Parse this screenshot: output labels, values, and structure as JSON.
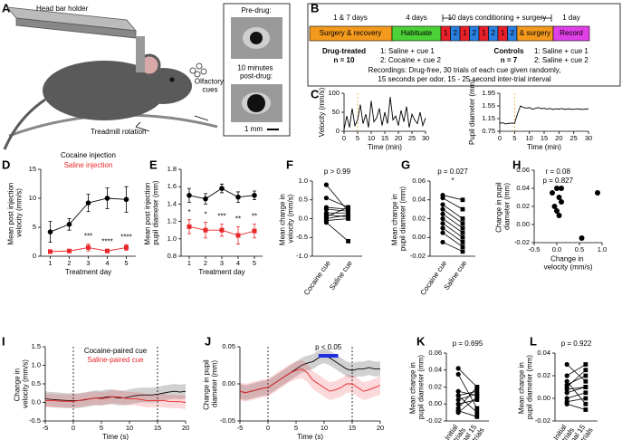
{
  "panel_labels": [
    "A",
    "B",
    "C",
    "D",
    "E",
    "F",
    "G",
    "H",
    "I",
    "J",
    "K",
    "L"
  ],
  "setup": {
    "head_bar": "Head bar holder",
    "cues": "Olfactory cues",
    "treadmill": "Treadmill rotation",
    "pre": "Pre-drug:",
    "post": "10 minutes post-drug:",
    "scale": "1 mm"
  },
  "experiment": {
    "durations": [
      "1 & 7 days",
      "4 days",
      "10 days conditioning + surgery",
      "1 day"
    ],
    "stages": [
      "Surgery & recovery",
      "Habituate"
    ],
    "sessions": [
      "1",
      "2",
      "1",
      "2",
      "1",
      "2",
      "1",
      "2"
    ],
    "surgery_note": "& surgery",
    "final_stage": "Record",
    "drug_group": {
      "name": "Drug-treated",
      "n": "n = 10",
      "cue1": "1: Saline + cue 1",
      "cue2": "2: Cocaine + cue 2"
    },
    "control_group": {
      "name": "Controls",
      "n": "n = 7",
      "cue1": "1: Saline + cue 1",
      "cue2": "2: Saline + cue 2"
    },
    "recordings": [
      "Recordings: Drug-free, 30 trials of each cue given randomly,",
      "15 seconds per odor, 15 - 25 second inter-trial interval"
    ]
  },
  "chart_data": [
    {
      "type": "line",
      "ylabel": "Velocity (mm/s)",
      "xlabel": "Time (min)",
      "xlim": [
        0,
        30
      ],
      "xticks": [
        0,
        5,
        10,
        15,
        20,
        25,
        30
      ],
      "ylim": [
        0,
        100
      ],
      "yticks": [
        0,
        50,
        100
      ],
      "vlines": [
        5
      ],
      "vline_color": "#f0a030",
      "x": [
        0,
        1,
        2,
        3,
        4,
        5,
        6,
        7,
        8,
        9,
        10,
        11,
        12,
        13,
        14,
        15,
        16,
        17,
        18,
        19,
        20,
        21,
        22,
        23,
        24,
        25,
        26,
        27,
        28,
        29,
        30
      ],
      "series": [
        {
          "color": "#000000",
          "values": [
            5,
            40,
            10,
            60,
            15,
            30,
            70,
            20,
            45,
            10,
            80,
            25,
            35,
            60,
            15,
            50,
            20,
            90,
            30,
            40,
            15,
            55,
            25,
            65,
            10,
            45,
            30,
            20,
            50,
            15,
            35
          ]
        }
      ]
    },
    {
      "type": "line",
      "ylabel": "Pupil diameter (mm)",
      "xlabel": "Time (min)",
      "xlim": [
        0,
        30
      ],
      "xticks": [
        0,
        5,
        10,
        15,
        20,
        25,
        30
      ],
      "ylim": [
        0.75,
        1.95
      ],
      "yticks": [
        0.75,
        1.15,
        1.55,
        1.95
      ],
      "vlines": [
        5
      ],
      "vline_color": "#f0a030",
      "x": [
        0,
        1,
        2,
        3,
        4,
        5,
        6,
        7,
        8,
        9,
        10,
        11,
        12,
        13,
        14,
        15,
        16,
        17,
        18,
        19,
        20,
        21,
        22,
        23,
        24,
        25,
        26,
        27,
        28,
        29,
        30
      ],
      "series": [
        {
          "color": "#000000",
          "values": [
            1.0,
            1.02,
            0.98,
            1.0,
            1.01,
            1.0,
            1.3,
            1.55,
            1.5,
            1.48,
            1.5,
            1.45,
            1.47,
            1.5,
            1.46,
            1.48,
            1.45,
            1.47,
            1.44,
            1.46,
            1.45,
            1.47,
            1.44,
            1.46,
            1.45,
            1.44,
            1.46,
            1.45,
            1.44,
            1.45,
            1.46
          ]
        }
      ]
    },
    {
      "type": "line",
      "ylabel": "Mean post injection velocity (mm/s)",
      "xlabel": "Treatment day",
      "xlim": [
        0.5,
        5.5
      ],
      "xticks": [
        1,
        2,
        3,
        4,
        5
      ],
      "ylim": [
        0,
        15
      ],
      "yticks": [
        0,
        5,
        10,
        15
      ],
      "markers": true,
      "legend": "above",
      "x": [
        1,
        2,
        3,
        4,
        5
      ],
      "series": [
        {
          "name": "Cocaine injection",
          "color": "#000000",
          "marker": "circle",
          "values": [
            4.2,
            5.5,
            9.2,
            10,
            9.8
          ],
          "errors": [
            1.8,
            1,
            1.5,
            1.8,
            2.2
          ]
        },
        {
          "name": "Saline injection",
          "color": "#e8282b",
          "marker": "square",
          "values": [
            0.8,
            0.9,
            1.5,
            0.9,
            1.5
          ],
          "errors": [
            0.2,
            0.2,
            0.6,
            0.3,
            0.5
          ]
        }
      ],
      "stars": [
        {
          "text": "***",
          "x": 3
        },
        {
          "text": "****",
          "x": 4
        },
        {
          "text": "****",
          "x": 5
        }
      ]
    },
    {
      "type": "line",
      "ylabel": "Mean post injection pupil diameter (mm)",
      "xlabel": "Treatment day",
      "xlim": [
        0.5,
        5.5
      ],
      "xticks": [
        1,
        2,
        3,
        4,
        5
      ],
      "ylim": [
        0.8,
        1.8
      ],
      "yticks": [
        0.8,
        {
          "value": 1,
          "label": "1.0"
        },
        1.2,
        1.4,
        1.6,
        1.8
      ],
      "markers": true,
      "x": [
        1,
        2,
        3,
        4,
        5
      ],
      "series": [
        {
          "color": "#000000",
          "marker": "circle",
          "values": [
            1.5,
            1.46,
            1.58,
            1.48,
            1.5
          ],
          "errors": [
            0.08,
            0.06,
            0.05,
            0.06,
            0.05
          ]
        },
        {
          "color": "#e8282b",
          "marker": "square",
          "values": [
            1.14,
            1.1,
            1.1,
            1.04,
            1.09
          ],
          "errors": [
            0.08,
            0.09,
            0.07,
            0.1,
            0.08
          ]
        }
      ],
      "stars": [
        {
          "text": "*",
          "x": 1
        },
        {
          "text": "*",
          "x": 2
        },
        {
          "text": "***",
          "x": 3
        },
        {
          "text": "**",
          "x": 4
        },
        {
          "text": "**",
          "x": 5
        }
      ]
    },
    {
      "type": "paired",
      "ylabel": "Mean change in velocity (mm/s)",
      "categories": [
        "Cocaine cue",
        "Saline cue"
      ],
      "ylim": [
        -1,
        1
      ],
      "yticks": [
        {
          "value": -1,
          "label": "-1.0"
        },
        -0.5,
        {
          "value": 0,
          "label": "0.0"
        },
        0.5,
        {
          "value": 1,
          "label": "1.0"
        }
      ],
      "annotations": [
        "p > 0.99"
      ],
      "values": [
        [
          0.9,
          0.55,
          0.3,
          0.25,
          0.15,
          0.1,
          0.05,
          0,
          -0.05,
          -0.1
        ],
        [
          0.2,
          0.3,
          0.25,
          0.2,
          0.15,
          0.05,
          0.3,
          0.1,
          0,
          -0.6
        ]
      ]
    },
    {
      "type": "paired",
      "ylabel": "Mean change in pupil diameter (mm)",
      "categories": [
        "Cocaine cue",
        "Saline cue"
      ],
      "ylim": [
        -0.02,
        0.06
      ],
      "yticks": [
        -0.02,
        {
          "value": 0,
          "label": "0.00"
        },
        0.02,
        0.04,
        0.06
      ],
      "annotations": [
        "p = 0.027",
        "*"
      ],
      "values": [
        [
          0.045,
          0.042,
          0.035,
          0.03,
          0.025,
          0.02,
          0.015,
          0.01,
          0.005,
          -0.005
        ],
        [
          0.04,
          0.03,
          0.02,
          0.015,
          0.01,
          0.005,
          0,
          -0.005,
          -0.01,
          -0.015
        ]
      ]
    },
    {
      "type": "scatter",
      "ylabel": "Change in pupil diameter (mm)",
      "xlabel": "Change in velocity (mm/s)",
      "xlim": [
        -0.5,
        1
      ],
      "xticks": [
        -0.5,
        {
          "value": 0,
          "label": "0.0"
        },
        0.5,
        {
          "value": 1,
          "label": "1.0"
        }
      ],
      "ylim": [
        -0.02,
        0.06
      ],
      "yticks": [
        -0.02,
        {
          "value": 0,
          "label": "0.00"
        },
        0.02,
        0.04,
        0.06
      ],
      "annotations": [
        "r =  0.08",
        "p = 0.827"
      ],
      "x": [
        -0.1,
        0,
        0.05,
        0.1,
        -0.05,
        0,
        0.05,
        0.1,
        0.55,
        0.9
      ],
      "y": [
        0.035,
        0.04,
        0.03,
        0.025,
        0.02,
        0.015,
        0.01,
        0.04,
        -0.015,
        0.035
      ]
    },
    {
      "type": "line",
      "ylabel": "Change in velocity (mm/s)",
      "xlabel": "Time (s)",
      "xlim": [
        -5,
        20
      ],
      "xticks": [
        -5,
        0,
        5,
        10,
        15,
        20
      ],
      "ylim": [
        -0.5,
        1.5
      ],
      "yticks": [
        -0.5,
        {
          "value": 0,
          "label": "0.0"
        },
        0.5,
        {
          "value": 1,
          "label": "1.0"
        },
        1.5
      ],
      "vlines": [
        0,
        15
      ],
      "vline_color": "#000000",
      "legend": "top",
      "x": [
        -5,
        -4,
        -3,
        -2,
        -1,
        0,
        1,
        2,
        3,
        4,
        5,
        6,
        7,
        8,
        9,
        10,
        11,
        12,
        13,
        14,
        15,
        16,
        17,
        18,
        19,
        20
      ],
      "series": [
        {
          "name": "Cocaine-paired cue",
          "color": "#000000",
          "error": 0.2,
          "values": [
            0.1,
            0.08,
            0.07,
            0.06,
            0.05,
            0.05,
            0.05,
            0.07,
            0.1,
            0.12,
            0.12,
            0.15,
            0.15,
            0.12,
            0.12,
            0.15,
            0.18,
            0.2,
            0.2,
            0.2,
            0.22,
            0.25,
            0.28,
            0.3,
            0.28,
            0.3
          ]
        },
        {
          "name": "Saline-paired cue",
          "color": "#e8282b",
          "error": 0.18,
          "values": [
            0.05,
            0.05,
            0.04,
            0.03,
            0.03,
            0.03,
            0.05,
            0.08,
            0.1,
            0.12,
            0.1,
            0.12,
            0.15,
            0.15,
            0.12,
            0.1,
            0.1,
            0.08,
            0.05,
            0.05,
            0.05,
            0.05,
            0.03,
            0.02,
            0.02,
            0
          ]
        }
      ]
    },
    {
      "type": "line",
      "ylabel": "Change in pupil diameter (mm)",
      "xlabel": "Time (s)",
      "xlim": [
        -5,
        20
      ],
      "xticks": [
        -5,
        0,
        5,
        10,
        15,
        20
      ],
      "ylim": [
        -0.05,
        0.05
      ],
      "yticks": [
        -0.05,
        {
          "value": 0,
          "label": "0.00"
        },
        0.05
      ],
      "vlines": [
        0,
        15
      ],
      "vline_color": "#000000",
      "significance": {
        "label": "p < 0.05",
        "range": [
          9,
          12.5
        ],
        "color": "#2030e0"
      },
      "x": [
        -5,
        -4,
        -3,
        -2,
        -1,
        0,
        1,
        2,
        3,
        4,
        5,
        6,
        7,
        8,
        9,
        10,
        11,
        12,
        13,
        14,
        15,
        16,
        17,
        18,
        19,
        20
      ],
      "series": [
        {
          "color": "#000000",
          "error": 0.01,
          "values": [
            -0.01,
            -0.012,
            -0.01,
            -0.008,
            -0.006,
            -0.005,
            0,
            0.005,
            0.01,
            0.015,
            0.02,
            0.025,
            0.028,
            0.03,
            0.035,
            0.038,
            0.035,
            0.03,
            0.025,
            0.02,
            0.018,
            0.02,
            0.02,
            0.022,
            0.02,
            0.02
          ]
        },
        {
          "color": "#e8282b",
          "error": 0.012,
          "values": [
            -0.01,
            -0.012,
            -0.01,
            -0.008,
            -0.006,
            -0.005,
            0,
            0.005,
            0.01,
            0.015,
            0.018,
            0.02,
            0.015,
            0.005,
            0,
            -0.005,
            -0.01,
            -0.008,
            -0.005,
            0,
            0,
            -0.005,
            -0.01,
            -0.008,
            -0.005,
            -0.002
          ]
        }
      ]
    },
    {
      "type": "paired",
      "ylabel": "Mean change in pupil diameter (mm)",
      "categories": [
        "Initial 15 trials",
        "Final 15 trials"
      ],
      "ylim": [
        -0.02,
        0.06
      ],
      "yticks": [
        -0.02,
        {
          "value": 0,
          "label": "0.00"
        },
        0.02,
        0.04,
        0.06
      ],
      "annotations": [
        "p = 0.695"
      ],
      "values": [
        [
          0.042,
          0.035,
          0.015,
          0.01,
          0.005,
          0,
          -0.005,
          -0.008,
          -0.01,
          0.01
        ],
        [
          0.02,
          -0.005,
          0.01,
          0.015,
          0.012,
          0.005,
          0.02,
          -0.015,
          0.008,
          -0.01
        ]
      ]
    },
    {
      "type": "paired",
      "ylabel": "Mean change in pupil diameter (mm)",
      "categories": [
        "Initial 15 trials",
        "Final 15 trials"
      ],
      "ylim": [
        -0.02,
        0.04
      ],
      "yticks": [
        -0.02,
        {
          "value": 0,
          "label": "0.00"
        },
        0.02,
        0.04
      ],
      "annotations": [
        "p = 0.922"
      ],
      "values": [
        [
          0.03,
          0.02,
          0.01,
          0.005,
          0,
          -0.003,
          -0.005,
          0.012,
          0.008,
          0.015
        ],
        [
          0.015,
          0.03,
          0.025,
          0.01,
          0.005,
          0,
          -0.01,
          0.02,
          0.01,
          -0.005
        ]
      ]
    }
  ]
}
